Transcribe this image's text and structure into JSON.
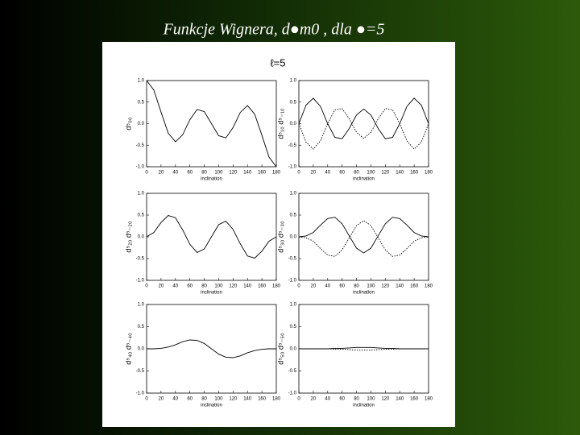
{
  "title": "Funkcje Wignera, d●m0 , dla ●=5",
  "figure_title": "ℓ=5",
  "chart_data": [
    {
      "type": "line",
      "y_label": "d⁵₀₀",
      "x_label": "inclination",
      "x": [
        0,
        10,
        20,
        30,
        40,
        50,
        60,
        70,
        80,
        90,
        100,
        110,
        120,
        130,
        140,
        150,
        160,
        170,
        180
      ],
      "series": [
        {
          "name": "d00",
          "color": "#000000",
          "style": "solid",
          "values": [
            1,
            0.78,
            0.27,
            -0.22,
            -0.42,
            -0.26,
            0.09,
            0.33,
            0.28,
            0,
            -0.28,
            -0.33,
            -0.09,
            0.26,
            0.42,
            0.22,
            -0.27,
            -0.78,
            -1
          ]
        }
      ],
      "xlim": [
        0,
        180
      ],
      "ylim": [
        -1,
        1
      ],
      "xticks": [
        0,
        20,
        40,
        60,
        80,
        100,
        120,
        140,
        160,
        180
      ],
      "yticks": [
        {
          "value": -1,
          "label": "-1.0"
        },
        -0.5,
        {
          "value": 0,
          "label": "0.0"
        },
        0.5,
        {
          "value": 1,
          "label": "1.0"
        }
      ]
    },
    {
      "type": "line",
      "y_label": "d⁵₁₀ d⁵₋₁₀",
      "x_label": "inclination",
      "x": [
        0,
        10,
        20,
        30,
        40,
        50,
        60,
        70,
        80,
        90,
        100,
        110,
        120,
        130,
        140,
        150,
        160,
        170,
        180
      ],
      "series": [
        {
          "name": "d10",
          "color": "#000000",
          "style": "solid",
          "values": [
            0,
            0.43,
            0.59,
            0.4,
            0,
            -0.32,
            -0.35,
            -0.11,
            0.2,
            0.34,
            0.2,
            -0.11,
            -0.35,
            -0.32,
            0,
            0.4,
            0.59,
            0.43,
            0
          ]
        },
        {
          "name": "d-10",
          "color": "#000000",
          "style": "dotted",
          "values": [
            0,
            -0.43,
            -0.59,
            -0.4,
            0,
            0.32,
            0.35,
            0.11,
            -0.2,
            -0.34,
            -0.2,
            0.11,
            0.35,
            0.32,
            0,
            -0.4,
            -0.59,
            -0.43,
            0
          ]
        }
      ],
      "xlim": [
        0,
        180
      ],
      "ylim": [
        -1,
        1
      ],
      "xticks": [
        0,
        20,
        40,
        60,
        80,
        100,
        120,
        140,
        160,
        180
      ],
      "yticks": [
        {
          "value": -1,
          "label": "-1.0"
        },
        -0.5,
        {
          "value": 0,
          "label": "0.0"
        },
        0.5,
        {
          "value": 1,
          "label": "1.0"
        }
      ]
    },
    {
      "type": "line",
      "y_label": "d⁵₂₀ d⁵₋₂₀",
      "x_label": "inclination",
      "x": [
        0,
        10,
        20,
        30,
        40,
        50,
        60,
        70,
        80,
        90,
        100,
        110,
        120,
        130,
        140,
        150,
        160,
        170,
        180
      ],
      "series": [
        {
          "name": "d20",
          "color": "#000000",
          "style": "solid",
          "values": [
            0,
            0.1,
            0.33,
            0.49,
            0.44,
            0.16,
            -0.17,
            -0.36,
            -0.28,
            0,
            0.28,
            0.36,
            0.17,
            -0.16,
            -0.44,
            -0.49,
            -0.33,
            -0.1,
            0
          ]
        }
      ],
      "xlim": [
        0,
        180
      ],
      "ylim": [
        -1,
        1
      ],
      "xticks": [
        0,
        20,
        40,
        60,
        80,
        100,
        120,
        140,
        160,
        180
      ],
      "yticks": [
        {
          "value": -1,
          "label": "-1.0"
        },
        -0.5,
        {
          "value": 0,
          "label": "0.0"
        },
        0.5,
        {
          "value": 1,
          "label": "1.0"
        }
      ]
    },
    {
      "type": "line",
      "y_label": "d⁵₃₀ d⁵₋₃₀",
      "x_label": "inclination",
      "x": [
        0,
        10,
        20,
        30,
        40,
        50,
        60,
        70,
        80,
        90,
        100,
        110,
        120,
        130,
        140,
        150,
        160,
        170,
        180
      ],
      "series": [
        {
          "name": "d30",
          "color": "#000000",
          "style": "solid",
          "values": [
            0,
            0.02,
            0.1,
            0.27,
            0.42,
            0.45,
            0.3,
            0.02,
            -0.26,
            -0.37,
            -0.26,
            0.02,
            0.3,
            0.45,
            0.42,
            0.27,
            0.1,
            0.02,
            0
          ]
        },
        {
          "name": "d-30",
          "color": "#000000",
          "style": "dotted",
          "values": [
            0,
            -0.02,
            -0.1,
            -0.27,
            -0.42,
            -0.45,
            -0.3,
            -0.02,
            0.26,
            0.37,
            0.26,
            -0.02,
            -0.3,
            -0.45,
            -0.42,
            -0.27,
            -0.1,
            -0.02,
            0
          ]
        }
      ],
      "xlim": [
        0,
        180
      ],
      "ylim": [
        -1,
        1
      ],
      "xticks": [
        0,
        20,
        40,
        60,
        80,
        100,
        120,
        140,
        160,
        180
      ],
      "yticks": [
        {
          "value": -1,
          "label": "-1.0"
        },
        -0.5,
        {
          "value": 0,
          "label": "0.0"
        },
        0.5,
        {
          "value": 1,
          "label": "1.0"
        }
      ]
    },
    {
      "type": "line",
      "y_label": "d⁵₄₀ d⁵₋₄₀",
      "x_label": "inclination",
      "x": [
        0,
        10,
        20,
        30,
        40,
        50,
        60,
        70,
        80,
        90,
        100,
        110,
        120,
        130,
        140,
        150,
        160,
        170,
        180
      ],
      "series": [
        {
          "name": "d40",
          "color": "#000000",
          "style": "solid",
          "values": [
            0,
            0,
            0.01,
            0.04,
            0.09,
            0.16,
            0.2,
            0.19,
            0.12,
            0,
            -0.12,
            -0.19,
            -0.2,
            -0.16,
            -0.09,
            -0.04,
            -0.01,
            0,
            0
          ]
        }
      ],
      "xlim": [
        0,
        180
      ],
      "ylim": [
        -1,
        1
      ],
      "xticks": [
        0,
        20,
        40,
        60,
        80,
        100,
        120,
        140,
        160,
        180
      ],
      "yticks": [
        {
          "value": -1,
          "label": "-1.0"
        },
        -0.5,
        {
          "value": 0,
          "label": "0.0"
        },
        0.5,
        {
          "value": 1,
          "label": "1.0"
        }
      ]
    },
    {
      "type": "line",
      "y_label": "d⁵₅₀ d⁵₋₅₀",
      "x_label": "inclination",
      "x": [
        0,
        10,
        20,
        30,
        40,
        50,
        60,
        70,
        80,
        90,
        100,
        110,
        120,
        130,
        140,
        150,
        160,
        170,
        180
      ],
      "series": [
        {
          "name": "d50",
          "color": "#000000",
          "style": "solid",
          "values": [
            0,
            0,
            0,
            0,
            0,
            0.01,
            0.01,
            0.02,
            0.03,
            0.03,
            0.03,
            0.02,
            0.01,
            0.01,
            0,
            0,
            0,
            0,
            0
          ]
        },
        {
          "name": "d-50",
          "color": "#000000",
          "style": "dotted",
          "values": [
            0,
            0,
            0,
            0,
            0,
            -0.01,
            -0.01,
            -0.02,
            -0.03,
            -0.03,
            -0.03,
            -0.02,
            -0.01,
            -0.01,
            0,
            0,
            0,
            0,
            0
          ]
        }
      ],
      "xlim": [
        0,
        180
      ],
      "ylim": [
        -1,
        1
      ],
      "xticks": [
        0,
        20,
        40,
        60,
        80,
        100,
        120,
        140,
        160,
        180
      ],
      "yticks": [
        {
          "value": -1,
          "label": "-1.0"
        },
        -0.5,
        {
          "value": 0,
          "label": "0.0"
        },
        0.5,
        {
          "value": 1,
          "label": "1.0"
        }
      ]
    }
  ]
}
